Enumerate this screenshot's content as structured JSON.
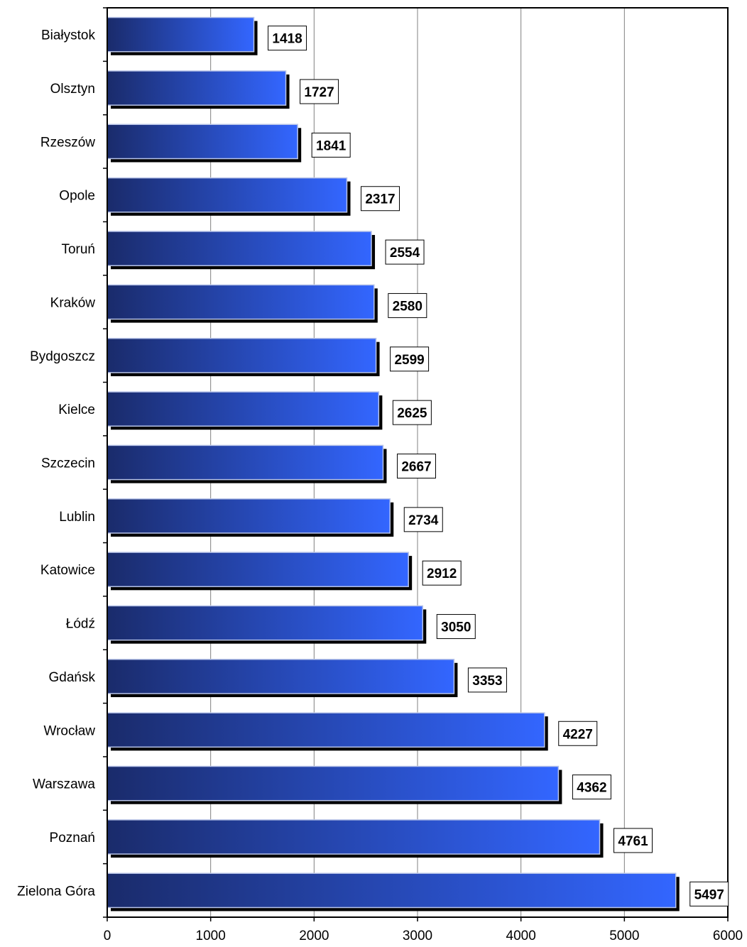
{
  "chart_data": {
    "type": "bar",
    "orientation": "horizontal",
    "categories": [
      "Białystok",
      "Olsztyn",
      "Rzeszów",
      "Opole",
      "Toruń",
      "Kraków",
      "Bydgoszcz",
      "Kielce",
      "Szczecin",
      "Lublin",
      "Katowice",
      "Łódź",
      "Gdańsk",
      "Wrocław",
      "Warszawa",
      "Poznań",
      "Zielona Góra"
    ],
    "values": [
      1418,
      1727,
      1841,
      2317,
      2554,
      2580,
      2599,
      2625,
      2667,
      2734,
      2912,
      3050,
      3353,
      4227,
      4362,
      4761,
      5497
    ],
    "xlim": [
      0,
      6000
    ],
    "xticks": [
      0,
      1000,
      2000,
      3000,
      4000,
      5000,
      6000
    ],
    "grid": "vertical",
    "data_labels": true,
    "colors": {
      "bar_dark": "#1a2b6b",
      "bar_light": "#3366ff",
      "shadow": "#000000",
      "gridline": "#808080"
    }
  }
}
